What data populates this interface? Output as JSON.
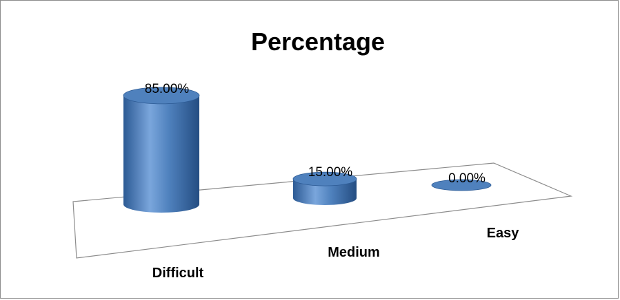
{
  "chart_data": {
    "type": "bar",
    "title": "Percentage",
    "categories": [
      "Difficult",
      "Medium",
      "Easy"
    ],
    "values": [
      85.0,
      15.0,
      0.0
    ],
    "data_labels": [
      "85.00%",
      "15.00%",
      "0.00%"
    ],
    "ylim": [
      0,
      100
    ],
    "grid": false,
    "legend": "none",
    "style": "3d-cylinder",
    "colors": {
      "bar": "#4f81bd",
      "bar_dark": "#2c5a94",
      "bar_light": "#7aa6dc",
      "floor_line": "#8c8c8c"
    }
  }
}
